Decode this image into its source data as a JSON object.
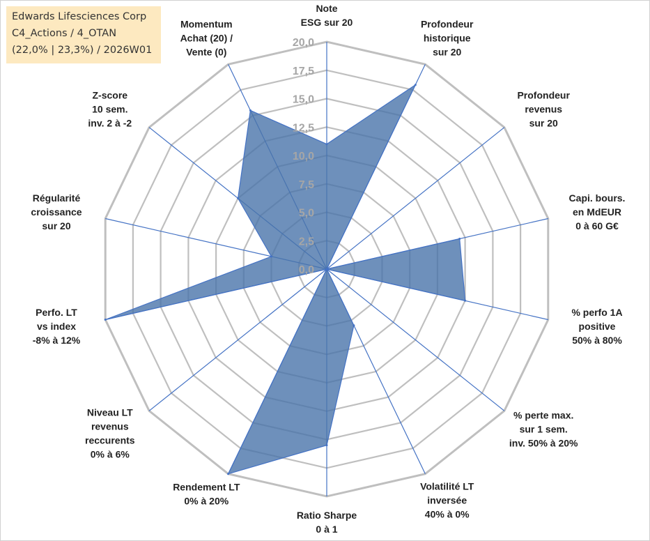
{
  "info_box": {
    "company": "Edwards Lifesciences Corp",
    "portfolio": "C4_Actions / 4_OTAN",
    "stats": "(22,0% | 23,3%) / 2026W01"
  },
  "colors": {
    "fill": "#4a74aa",
    "spoke": "#4472c4",
    "grid": "#bfbfbf",
    "tick": "#a6a6a6",
    "info_bg": "#fde9c0"
  },
  "chart_data": {
    "type": "radar",
    "scale": {
      "min": 0,
      "max": 20,
      "step": 2.5
    },
    "tick_labels": [
      "0,0",
      "2,5",
      "5,0",
      "7,5",
      "10,0",
      "12,5",
      "15,0",
      "17,5",
      "20,0"
    ],
    "axes": [
      {
        "lines": [
          "Note",
          "ESG sur 20"
        ],
        "value": 11
      },
      {
        "lines": [
          "Profondeur",
          "historique",
          "sur 20"
        ],
        "value": 18
      },
      {
        "lines": [
          "Profondeur",
          "revenus",
          "sur 20"
        ],
        "value": 0
      },
      {
        "lines": [
          "Capi. bours.",
          "en MdEUR",
          "0 à 60 G€"
        ],
        "value": 12
      },
      {
        "lines": [
          "% perfo 1A",
          "positive",
          "50% à 80%"
        ],
        "value": 12.5
      },
      {
        "lines": [
          "% perte max.",
          "sur 1 sem.",
          "inv. 50% à 20%"
        ],
        "value": 0
      },
      {
        "lines": [
          "Volatilité LT",
          "inversée",
          "40% à 0%"
        ],
        "value": 5.5
      },
      {
        "lines": [
          "Ratio Sharpe",
          "0 à 1"
        ],
        "value": 15.5
      },
      {
        "lines": [
          "Rendement LT",
          "0% à 20%"
        ],
        "value": 20
      },
      {
        "lines": [
          "Niveau LT",
          "revenus",
          "reccurents",
          "0% à 6%"
        ],
        "value": 0
      },
      {
        "lines": [
          "Perfo. LT",
          "vs index",
          "-8% à 12%"
        ],
        "value": 20
      },
      {
        "lines": [
          "Régularité",
          "croissance",
          "sur 20"
        ],
        "value": 5
      },
      {
        "lines": [
          "Z-score",
          "10 sem.",
          "inv. 2 à -2"
        ],
        "value": 10
      },
      {
        "lines": [
          "Momentum",
          "Achat (20) /",
          "Vente (0)"
        ],
        "value": 15.5
      }
    ]
  }
}
